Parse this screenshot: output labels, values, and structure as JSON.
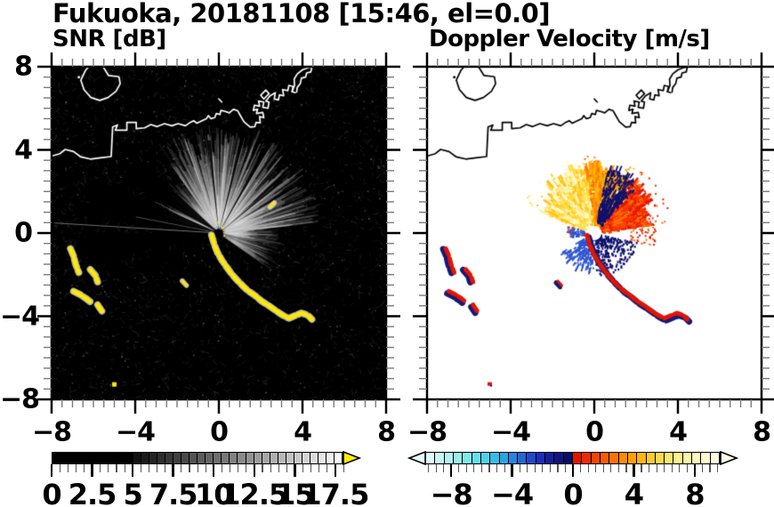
{
  "title": "Fukuoka, 20181108 [15:46, el=0.0]",
  "panels": {
    "left": {
      "title": "SNR [dB]"
    },
    "right": {
      "title": "Doppler Velocity [m/s]"
    }
  },
  "axes": {
    "range_km": [
      -8,
      8
    ],
    "major_ticks": [
      -8,
      -4,
      0,
      4,
      8
    ],
    "x_tick_labels": [
      "−8",
      "−4",
      "0",
      "4",
      "8"
    ],
    "y_tick_labels": [
      "8",
      "4",
      "0",
      "−4",
      "−8"
    ],
    "minor_step": 0.5
  },
  "colorbars": {
    "snr": {
      "min": 0,
      "max": 18,
      "tick_values": [
        0,
        2.5,
        5,
        7.5,
        10,
        12.5,
        15,
        17.5
      ],
      "tick_labels": [
        "0",
        "2.5",
        "5",
        "7.5",
        "10",
        "12.5",
        "15",
        "17.5"
      ],
      "minor_step": 0.5,
      "overflow_arrow_color": "#ffee00",
      "cell_colors": [
        "#000000",
        "#000000",
        "#000000",
        "#000000",
        "#000000",
        "#000000",
        "#000000",
        "#000000",
        "#000000",
        "#000000",
        "#121212",
        "#1b1b1b",
        "#242424",
        "#2e2e2e",
        "#373737",
        "#404040",
        "#494949",
        "#535353",
        "#5c5c5c",
        "#656565",
        "#6e6e6e",
        "#787878",
        "#818181",
        "#8a8a8a",
        "#939393",
        "#9d9d9d",
        "#a6a6a6",
        "#afafaf",
        "#b8b8b8",
        "#c2c2c2",
        "#cbcbcb",
        "#d4d4d4",
        "#dddddd",
        "#e7e7e7",
        "#f0f0f0",
        "#f8f8f8"
      ]
    },
    "velocity": {
      "min": -9.7,
      "max": 9.7,
      "tick_values": [
        -8,
        -4,
        0,
        4,
        8
      ],
      "tick_labels": [
        "−8",
        "−4",
        "0",
        "4",
        "8"
      ],
      "minor_step": 0.5,
      "left_arrow_color": "#e8fbfb",
      "right_arrow_color": "#fffde8",
      "cell_colors": [
        "#dffbfb",
        "#c9f6f6",
        "#b2f1f1",
        "#9cecec",
        "#83e6e9",
        "#68dde8",
        "#4fcfe8",
        "#38bce6",
        "#2aa3e2",
        "#2386dc",
        "#2168d4",
        "#2149cb",
        "#1c2fb8",
        "#151f9e",
        "#0e1583",
        "#080e68",
        "#e11400",
        "#ea2d00",
        "#f24500",
        "#f75d00",
        "#fb7400",
        "#fe8b00",
        "#ffa100",
        "#ffb60e",
        "#ffc92e",
        "#ffd94e",
        "#ffe66e",
        "#ffef8d",
        "#fff5a8",
        "#fff9bf",
        "#fffcd2",
        "#fffde2"
      ]
    }
  },
  "chart_data": {
    "type": "heatmap",
    "title": "Fukuoka, 20181108 [15:46, el=0.0]",
    "description": "Dual-panel Doppler lidar PPI scan at elevation 0.0 deg over Fukuoka bay. Left panel: signal-to-noise ratio in dB (grayscale 0-18, saturated hard-target returns shown yellow). Right panel: Doppler velocity in m/s (cyan-blue negative, red-yellow positive, about +/-10 m/s).",
    "axis_units": "km from radar (east-west vs north-south)",
    "axis_range": [
      -8,
      8
    ],
    "radar_center_km": [
      0,
      0
    ],
    "snr_panel": {
      "background": "#000000",
      "coast_color": "#ffffff",
      "echo_color": "#ffe800",
      "snr_range_db": [
        0,
        18
      ],
      "bright_fan": "speckled gray backscatter fan to ~4.5 km, brightest toward N-NE, black shadow wedges toward W-SW"
    },
    "velocity_panel": {
      "background": "#ffffff",
      "coast_color": "#000000",
      "velocity_range_ms": [
        -9.7,
        9.7
      ],
      "plume": "N-NE fan to ~2.7 km: pale-yellow/yellow (NNW side) to orange/red (NE side), navy negative streaks embedded below and SE of center, blue streaks S-SW of center"
    },
    "features": {
      "coastline_main": [
        [
          -8,
          3.7
        ],
        [
          -7.6,
          3.82
        ],
        [
          -7.35,
          4.02
        ],
        [
          -6.95,
          3.92
        ],
        [
          -6.6,
          3.66
        ],
        [
          -6.15,
          3.56
        ],
        [
          -5.65,
          3.62
        ],
        [
          -5.15,
          3.68
        ],
        [
          -5.08,
          5.1
        ],
        [
          -4.85,
          5.2
        ],
        [
          -4.95,
          4.95
        ],
        [
          -4.4,
          4.95
        ],
        [
          -4.4,
          5.32
        ],
        [
          -3.95,
          5.32
        ],
        [
          -3.95,
          5.02
        ],
        [
          -3.55,
          5.06
        ],
        [
          -3.25,
          5.22
        ],
        [
          -2.95,
          5.12
        ],
        [
          -2.6,
          5.26
        ],
        [
          -2.25,
          5.16
        ],
        [
          -1.95,
          5.26
        ],
        [
          -1.6,
          5.16
        ],
        [
          -1.4,
          5.3
        ],
        [
          -1.2,
          5.4
        ],
        [
          -1.05,
          5.28
        ],
        [
          -0.85,
          5.38
        ],
        [
          -0.6,
          5.5
        ],
        [
          -0.5,
          5.65
        ],
        [
          -0.38,
          5.5
        ],
        [
          -0.2,
          5.55
        ],
        [
          -0.12,
          5.75
        ],
        [
          0.05,
          5.7
        ],
        [
          0.1,
          5.9
        ],
        [
          0.3,
          5.85
        ],
        [
          0.5,
          5.78
        ],
        [
          0.7,
          5.95
        ],
        [
          0.9,
          5.88
        ],
        [
          1.0,
          5.7
        ],
        [
          1.2,
          5.35
        ],
        [
          1.5,
          5.1
        ],
        [
          1.72,
          5.12
        ],
        [
          1.78,
          5.32
        ],
        [
          1.98,
          5.3
        ],
        [
          1.95,
          5.6
        ],
        [
          2.15,
          5.55
        ],
        [
          2.1,
          5.8
        ],
        [
          1.8,
          5.75
        ],
        [
          1.85,
          5.95
        ],
        [
          1.65,
          5.9
        ],
        [
          1.7,
          6.15
        ],
        [
          1.95,
          6.1
        ],
        [
          1.9,
          6.35
        ],
        [
          2.15,
          6.3
        ],
        [
          2.1,
          6.05
        ],
        [
          2.35,
          6.0
        ],
        [
          2.4,
          6.3
        ],
        [
          2.25,
          6.35
        ],
        [
          2.45,
          6.6
        ],
        [
          2.7,
          6.75
        ],
        [
          2.65,
          6.45
        ],
        [
          2.85,
          6.4
        ],
        [
          2.9,
          6.65
        ],
        [
          3.1,
          6.6
        ],
        [
          3.05,
          6.9
        ],
        [
          3.3,
          6.85
        ],
        [
          3.35,
          7.1
        ],
        [
          3.55,
          7.05
        ],
        [
          3.5,
          6.8
        ],
        [
          3.65,
          6.75
        ]
      ],
      "harbor_hook": [
        [
          3.5,
          6.8
        ],
        [
          3.62,
          7.1
        ],
        [
          3.6,
          7.4
        ],
        [
          3.75,
          7.65
        ],
        [
          4.0,
          7.85
        ],
        [
          4.25,
          7.95
        ],
        [
          4.45,
          8.0
        ],
        [
          4.4,
          7.75
        ],
        [
          4.2,
          7.7
        ],
        [
          4.15,
          7.5
        ],
        [
          3.95,
          7.45
        ],
        [
          3.9,
          7.2
        ],
        [
          3.75,
          7.0
        ],
        [
          3.72,
          6.78
        ]
      ],
      "pier_loop": [
        [
          2.15,
          6.45
        ],
        [
          2.4,
          6.7
        ],
        [
          2.25,
          6.88
        ],
        [
          2.0,
          6.63
        ],
        [
          2.15,
          6.45
        ]
      ],
      "island": [
        [
          -6.6,
          7.35
        ],
        [
          -6.38,
          7.82
        ],
        [
          -6.15,
          8.1
        ],
        [
          -5.6,
          8.1
        ],
        [
          -5.28,
          7.58
        ],
        [
          -4.78,
          7.52
        ],
        [
          -4.72,
          7.18
        ],
        [
          -4.92,
          6.82
        ],
        [
          -5.3,
          6.52
        ],
        [
          -5.7,
          6.38
        ],
        [
          -6.12,
          6.52
        ],
        [
          -6.45,
          6.9
        ],
        [
          -6.6,
          7.35
        ]
      ],
      "coast_mark": [
        [
          0.0,
          6.45
        ],
        [
          0.14,
          6.3
        ]
      ],
      "coast_speck": [
        -6.75,
        7.55
      ],
      "echo_chains": [
        {
          "points": [
            [
              -0.35,
              -0.1
            ],
            [
              -0.22,
              -0.55
            ],
            [
              -0.06,
              -0.95
            ],
            [
              0.14,
              -1.3
            ],
            [
              0.36,
              -1.62
            ],
            [
              0.6,
              -1.95
            ],
            [
              0.86,
              -2.25
            ],
            [
              1.12,
              -2.52
            ],
            [
              1.4,
              -2.78
            ],
            [
              1.72,
              -3.0
            ],
            [
              2.05,
              -3.28
            ],
            [
              2.4,
              -3.5
            ],
            [
              2.75,
              -3.75
            ],
            [
              3.05,
              -3.95
            ],
            [
              3.35,
              -4.1
            ],
            [
              3.65,
              -3.97
            ],
            [
              3.95,
              -3.85
            ],
            [
              4.25,
              -3.95
            ],
            [
              4.45,
              -4.15
            ]
          ],
          "w": 5,
          "noff": [
            2,
            2.5
          ]
        },
        {
          "points": [
            [
              -7.1,
              -0.75
            ],
            [
              -6.95,
              -1.1
            ],
            [
              -6.85,
              -1.5
            ],
            [
              -6.7,
              -1.9
            ]
          ],
          "w": 5,
          "noff": [
            -3,
            0.5
          ]
        },
        {
          "points": [
            [
              -6.15,
              -1.75
            ],
            [
              -5.9,
              -2.05
            ],
            [
              -5.8,
              -2.35
            ]
          ],
          "w": 5,
          "noff": [
            -3,
            0.5
          ]
        },
        {
          "points": [
            [
              -6.95,
              -2.8
            ],
            [
              -6.65,
              -2.95
            ],
            [
              -6.35,
              -3.15
            ],
            [
              -6.1,
              -3.35
            ]
          ],
          "w": 5,
          "noff": [
            -2,
            2.5
          ]
        },
        {
          "points": [
            [
              -5.8,
              -3.45
            ],
            [
              -5.6,
              -3.75
            ]
          ],
          "w": 5,
          "noff": [
            -2,
            2.5
          ]
        },
        {
          "points": [
            [
              -1.75,
              -2.3
            ],
            [
              -1.55,
              -2.52
            ]
          ],
          "w": 3,
          "noff": [
            -2,
            2
          ]
        },
        {
          "points": [
            [
              2.45,
              1.25
            ],
            [
              2.65,
              1.45
            ]
          ],
          "w": 3,
          "noff": [
            0,
            0
          ],
          "only": "snr"
        }
      ],
      "echo_dot": [
        -5.02,
        -7.26
      ],
      "center_specks": [
        [
          0.15,
          0.3
        ],
        [
          -0.08,
          0.55
        ],
        [
          0.22,
          -0.08
        ]
      ]
    }
  }
}
